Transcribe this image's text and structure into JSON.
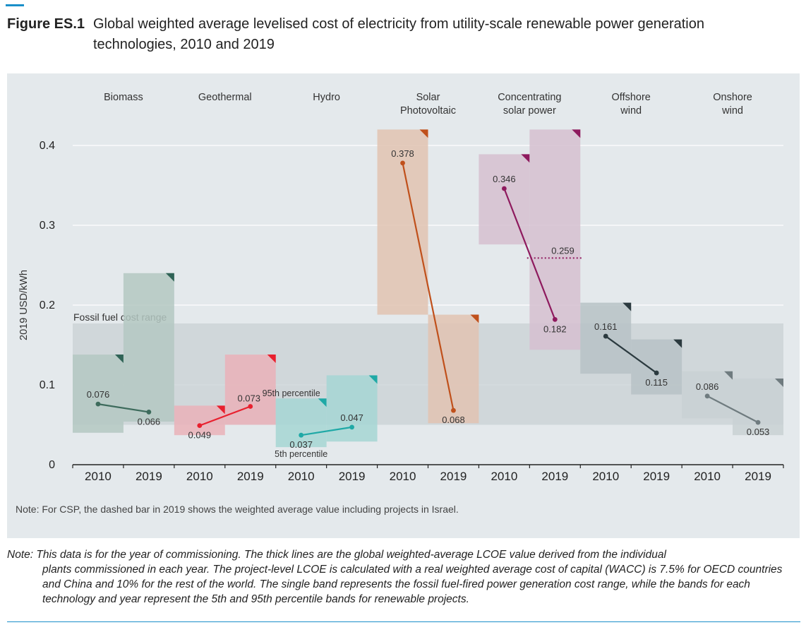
{
  "figure": {
    "label": "Figure ES.1",
    "title_line1": "Global weighted average levelised cost of electricity from utility-scale renewable power generation",
    "title_line2": "technologies, 2010 and 2019"
  },
  "chart_data": {
    "type": "line",
    "ylabel": "2019 USD/kWh",
    "ylim": [
      0,
      0.43
    ],
    "yticks": [
      {
        "value": 0,
        "label": "0"
      },
      {
        "value": 0.1,
        "label": "0.1"
      },
      {
        "value": 0.2,
        "label": "0.2"
      },
      {
        "value": 0.3,
        "label": "0.3"
      },
      {
        "value": 0.4,
        "label": "0.4"
      }
    ],
    "grid": true,
    "fossil_band": {
      "label": "Fossil fuel cost range",
      "low": 0.05,
      "high": 0.177,
      "color": "#c9d0d4"
    },
    "percentile_labels": {
      "p95": "95th percentile",
      "p5": "5th percentile"
    },
    "technologies": [
      {
        "name": "Biomass",
        "color": "#3d6b5c",
        "band_color": "#b4c8c2",
        "corner_color": "#2f6356",
        "years": [
          {
            "year": "2010",
            "value": 0.076,
            "label": "0.076",
            "p5": 0.04,
            "p95": 0.138
          },
          {
            "year": "2019",
            "value": 0.066,
            "label": "0.066",
            "p5": 0.054,
            "p95": 0.24
          }
        ]
      },
      {
        "name": "Geothermal",
        "color": "#e8202e",
        "band_color": "#eab2b8",
        "corner_color": "#e8202e",
        "years": [
          {
            "year": "2010",
            "value": 0.049,
            "label": "0.049",
            "p5": 0.037,
            "p95": 0.074
          },
          {
            "year": "2019",
            "value": 0.073,
            "label": "0.073",
            "p5": 0.05,
            "p95": 0.138
          }
        ]
      },
      {
        "name": "Hydro",
        "color": "#1fa9a6",
        "band_color": "#a6d6d3",
        "corner_color": "#1fa9a6",
        "years": [
          {
            "year": "2010",
            "value": 0.037,
            "label": "0.037",
            "p5": 0.022,
            "p95": 0.083
          },
          {
            "year": "2019",
            "value": 0.047,
            "label": "0.047",
            "p5": 0.029,
            "p95": 0.112
          }
        ]
      },
      {
        "name": "Solar Photovoltaic",
        "color": "#c0501b",
        "band_color": "#e2c3b2",
        "corner_color": "#c0501b",
        "years": [
          {
            "year": "2010",
            "value": 0.378,
            "label": "0.378",
            "p5": 0.188,
            "p95": 0.42
          },
          {
            "year": "2019",
            "value": 0.068,
            "label": "0.068",
            "p5": 0.052,
            "p95": 0.188
          }
        ]
      },
      {
        "name": "Concentrating solar power",
        "color": "#8e1a5e",
        "band_color": "#d6bfd0",
        "corner_color": "#8e1a5e",
        "years": [
          {
            "year": "2010",
            "value": 0.346,
            "label": "0.346",
            "p5": 0.276,
            "p95": 0.389
          },
          {
            "year": "2019",
            "value": 0.182,
            "label": "0.182",
            "p5": 0.144,
            "p95": 0.42
          }
        ],
        "dashed": {
          "value": 0.259,
          "label": "0.259"
        }
      },
      {
        "name": "Offshore wind",
        "color": "#2b3a3f",
        "band_color": "#b7c2c5",
        "corner_color": "#2b3a3f",
        "years": [
          {
            "year": "2010",
            "value": 0.161,
            "label": "0.161",
            "p5": 0.114,
            "p95": 0.203
          },
          {
            "year": "2019",
            "value": 0.115,
            "label": "0.115",
            "p5": 0.088,
            "p95": 0.157
          }
        ]
      },
      {
        "name": "Onshore wind",
        "color": "#6f7b7f",
        "band_color": "#c9d1d3",
        "corner_color": "#6f7b7f",
        "years": [
          {
            "year": "2010",
            "value": 0.086,
            "label": "0.086",
            "p5": 0.058,
            "p95": 0.117
          },
          {
            "year": "2019",
            "value": 0.053,
            "label": "0.053",
            "p5": 0.037,
            "p95": 0.108
          }
        ]
      }
    ],
    "panel_note": "Note: For CSP, the dashed bar in 2019 shows the weighted average value including projects in Israel."
  },
  "note": {
    "first": "Note: This data is for the year of commissioning. The thick lines are the global weighted-average LCOE value derived from the individual",
    "rest": "plants commissioned in each year. The project-level LCOE is calculated with a real weighted average cost of capital (WACC) is 7.5% for OECD countries and China and 10% for the rest of the world. The single band represents the fossil fuel-fired power generation cost range, while the bands for each technology and year represent the 5th and 95th percentile bands for renewable projects."
  }
}
